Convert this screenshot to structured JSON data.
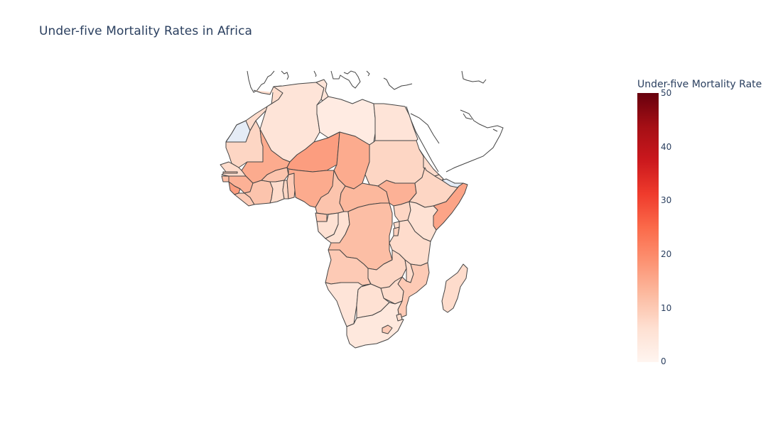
{
  "title": "Under-five Mortality Rates in Africa",
  "colorbar": {
    "title": "Under-five Mortality Rate",
    "min": 0,
    "max": 50,
    "ticks": [
      "0",
      "10",
      "20",
      "30",
      "40",
      "50"
    ],
    "colors": [
      "#fff5f0",
      "#fee0d2",
      "#fcbba1",
      "#fc9272",
      "#fb6a4a",
      "#ef3b2c",
      "#cb181d",
      "#a50f15",
      "#67000d"
    ]
  },
  "no_data_color": "#e5ecf6",
  "countries": {
    "morocco": 7,
    "algeria": 5,
    "tunisia": 5,
    "libya": 3,
    "egypt": 5,
    "western-sahara": null,
    "mauritania": 8,
    "mali": 15,
    "niger": 17,
    "chad": 15,
    "sudan": 8,
    "south-sudan": 14,
    "eritrea": 7,
    "ethiopia": 8,
    "somalia": 16,
    "somaliland": null,
    "djibouti": 7,
    "senegal": 7,
    "gambia": 10,
    "guinea-bissau": 12,
    "guinea": 14,
    "sierra-leone": 17,
    "liberia": 10,
    "cote-divoire": 11,
    "burkina-faso": 11,
    "ghana": 7,
    "togo": 8,
    "benin": 10,
    "nigeria": 15,
    "cameroon": 11,
    "central-african-republic": 13,
    "equatorial-guinea": 10,
    "gabon": 6,
    "congo": 6,
    "dr-congo": 12,
    "uganda": 8,
    "kenya": 6,
    "rwanda": 7,
    "burundi": 9,
    "tanzania": 7,
    "angola": 10,
    "zambia": 8,
    "malawi": 7,
    "mozambique": 10,
    "zimbabwe": 7,
    "namibia": 5,
    "botswana": 6,
    "south-africa": 4,
    "lesotho": 10,
    "eswatini": 7,
    "madagascar": 7
  }
}
